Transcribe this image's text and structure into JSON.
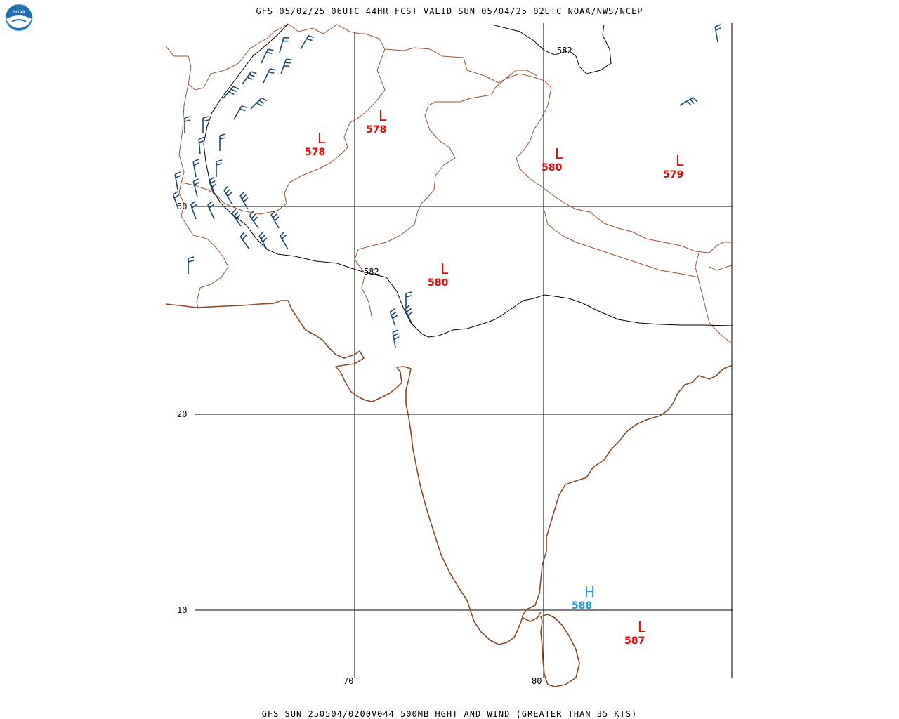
{
  "header": {
    "title": "GFS 05/02/25 06UTC 44HR FCST VALID SUN 05/04/25 02UTC NOAA/NWS/NCEP"
  },
  "footer": {
    "caption": "GFS SUN 250504/0200V044 500MB HGHT AND WIND (GREATER THAN 35 KTS)"
  },
  "logo": {
    "text": "NOAA",
    "icon": "noaa-logo-icon"
  },
  "grid": {
    "lat_labels": {
      "lat30": "30",
      "lat20": "20",
      "lat10": "10"
    },
    "lon_labels": {
      "lon70": "70",
      "lon80": "80"
    }
  },
  "contours": {
    "north_label": "582",
    "mid_label": "582"
  },
  "pressure_centers": {
    "low_nw": {
      "letter": "L",
      "value": "578"
    },
    "low_n": {
      "letter": "L",
      "value": "578"
    },
    "low_ne": {
      "letter": "L",
      "value": "580"
    },
    "low_far_e": {
      "letter": "L",
      "value": "579"
    },
    "low_central": {
      "letter": "L",
      "value": "580"
    },
    "high_se": {
      "letter": "H",
      "value": "588"
    },
    "low_sri_lanka": {
      "letter": "L",
      "value": "587"
    }
  },
  "colors": {
    "low": "#ff0000",
    "high": "#1ea0e0",
    "coast": "#8b4a24",
    "barb": "#1a4a78"
  }
}
